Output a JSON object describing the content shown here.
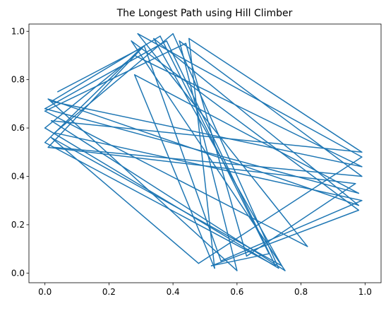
{
  "chart_data": {
    "type": "line",
    "title": "The Longest Path using Hill Climber",
    "xlabel": "",
    "ylabel": "",
    "xlim": [
      -0.05,
      1.05
    ],
    "ylim": [
      -0.04,
      1.03
    ],
    "xticks": [
      0.0,
      0.2,
      0.4,
      0.6,
      0.8,
      1.0
    ],
    "xtick_labels": [
      "0.0",
      "0.2",
      "0.4",
      "0.6",
      "0.8",
      "1.0"
    ],
    "yticks": [
      0.0,
      0.2,
      0.4,
      0.6,
      0.8,
      1.0
    ],
    "ytick_labels": [
      "0.0",
      "0.2",
      "0.4",
      "0.6",
      "0.8",
      "1.0"
    ],
    "grid": false,
    "legend": false,
    "series": [
      {
        "color": "#1f77b4",
        "points": [
          [
            0.04,
            0.75
          ],
          [
            0.3,
            0.93
          ],
          [
            0.0,
            0.54
          ],
          [
            0.72,
            0.03
          ],
          [
            0.38,
            0.96
          ],
          [
            0.0,
            0.68
          ],
          [
            0.98,
            0.33
          ],
          [
            0.28,
            0.82
          ],
          [
            0.53,
            0.02
          ],
          [
            0.45,
            0.97
          ],
          [
            0.99,
            0.5
          ],
          [
            0.02,
            0.63
          ],
          [
            0.75,
            0.01
          ],
          [
            0.27,
            0.96
          ],
          [
            0.98,
            0.26
          ],
          [
            0.52,
            0.03
          ],
          [
            0.7,
            0.08
          ],
          [
            0.36,
            0.98
          ],
          [
            0.02,
            0.71
          ],
          [
            0.99,
            0.44
          ],
          [
            0.28,
            0.9
          ],
          [
            0.0,
            0.6
          ],
          [
            0.73,
            0.02
          ],
          [
            0.4,
            0.99
          ],
          [
            0.03,
            0.58
          ],
          [
            0.99,
            0.3
          ],
          [
            0.55,
            0.05
          ],
          [
            0.31,
            0.94
          ],
          [
            0.01,
            0.52
          ],
          [
            0.97,
            0.37
          ],
          [
            0.63,
            0.07
          ],
          [
            0.44,
            0.95
          ],
          [
            0.0,
            0.67
          ],
          [
            0.82,
            0.11
          ],
          [
            0.29,
            0.99
          ],
          [
            0.99,
            0.48
          ],
          [
            0.48,
            0.04
          ],
          [
            0.02,
            0.56
          ],
          [
            0.74,
            0.03
          ],
          [
            0.34,
            0.97
          ],
          [
            0.98,
            0.28
          ],
          [
            0.01,
            0.72
          ],
          [
            0.6,
            0.01
          ],
          [
            0.42,
            0.96
          ],
          [
            0.99,
            0.4
          ],
          [
            0.03,
            0.52
          ]
        ]
      }
    ]
  }
}
